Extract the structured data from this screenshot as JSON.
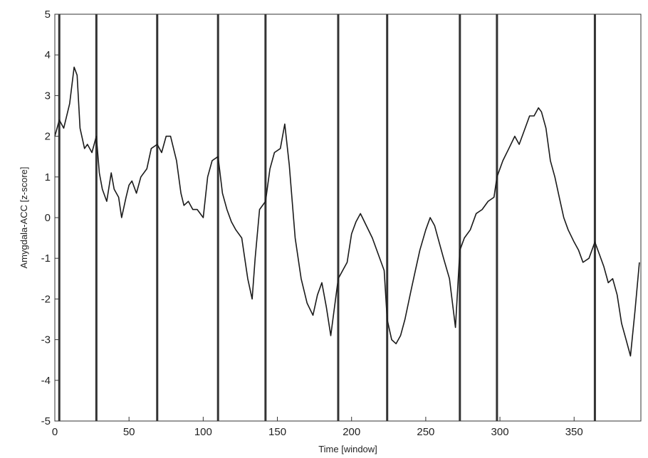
{
  "chart_data": {
    "type": "line",
    "xlabel": "Time [window]",
    "ylabel": "Amygdala-ACC [z-score]",
    "xlim": [
      0,
      395
    ],
    "ylim": [
      -5,
      5
    ],
    "x_ticks": [
      0,
      50,
      100,
      150,
      200,
      250,
      300,
      350
    ],
    "y_ticks": [
      -5,
      -4,
      -3,
      -2,
      -1,
      0,
      1,
      2,
      3,
      4,
      5
    ],
    "grid": false,
    "vertical_markers": [
      3,
      28,
      69,
      110,
      142,
      191,
      224,
      273,
      298,
      364
    ],
    "line_color": "#1a1a1a",
    "marker_color": "#333333",
    "series": [
      {
        "x": [
          0,
          3,
          6,
          10,
          13,
          15,
          17,
          20,
          22,
          25,
          28,
          30,
          32,
          35,
          38,
          40,
          43,
          45,
          48,
          50,
          52,
          55,
          58,
          62,
          65,
          69,
          72,
          75,
          78,
          82,
          85,
          87,
          90,
          93,
          96,
          100,
          103,
          106,
          110,
          113,
          116,
          119,
          122,
          126,
          130,
          133,
          135,
          138,
          142,
          145,
          148,
          152,
          155,
          158,
          162,
          166,
          170,
          174,
          177,
          180,
          183,
          186,
          191,
          194,
          197,
          200,
          203,
          206,
          210,
          214,
          218,
          222,
          224,
          227,
          230,
          233,
          236,
          240,
          243,
          246,
          250,
          253,
          256,
          259,
          262,
          266,
          270,
          273,
          276,
          280,
          284,
          288,
          292,
          296,
          298,
          302,
          306,
          310,
          313,
          316,
          320,
          323,
          326,
          328,
          331,
          334,
          337,
          340,
          343,
          346,
          350,
          353,
          356,
          360,
          364,
          367,
          370,
          373,
          376,
          379,
          382,
          385,
          388,
          391,
          394
        ],
        "y": [
          2.0,
          2.4,
          2.2,
          2.8,
          3.7,
          3.5,
          2.2,
          1.7,
          1.8,
          1.6,
          2.0,
          1.1,
          0.7,
          0.4,
          1.1,
          0.7,
          0.5,
          0.0,
          0.5,
          0.8,
          0.9,
          0.6,
          1.0,
          1.2,
          1.7,
          1.8,
          1.6,
          2.0,
          2.0,
          1.4,
          0.6,
          0.3,
          0.4,
          0.2,
          0.2,
          0.0,
          1.0,
          1.4,
          1.5,
          0.6,
          0.2,
          -0.1,
          -0.3,
          -0.5,
          -1.5,
          -2.0,
          -1.0,
          0.2,
          0.4,
          1.2,
          1.6,
          1.7,
          2.3,
          1.3,
          -0.5,
          -1.5,
          -2.1,
          -2.4,
          -1.9,
          -1.6,
          -2.2,
          -2.9,
          -1.5,
          -1.3,
          -1.1,
          -0.4,
          -0.1,
          0.1,
          -0.2,
          -0.5,
          -0.9,
          -1.3,
          -2.5,
          -3.0,
          -3.1,
          -2.9,
          -2.5,
          -1.8,
          -1.3,
          -0.8,
          -0.3,
          0.0,
          -0.2,
          -0.6,
          -1.0,
          -1.5,
          -2.7,
          -0.8,
          -0.5,
          -0.3,
          0.1,
          0.2,
          0.4,
          0.5,
          1.0,
          1.4,
          1.7,
          2.0,
          1.8,
          2.1,
          2.5,
          2.5,
          2.7,
          2.6,
          2.2,
          1.4,
          1.0,
          0.5,
          0.0,
          -0.3,
          -0.6,
          -0.8,
          -1.1,
          -1.0,
          -0.6,
          -0.9,
          -1.2,
          -1.6,
          -1.5,
          -1.9,
          -2.6,
          -3.0,
          -3.4,
          -2.3,
          -1.1
        ]
      }
    ]
  }
}
